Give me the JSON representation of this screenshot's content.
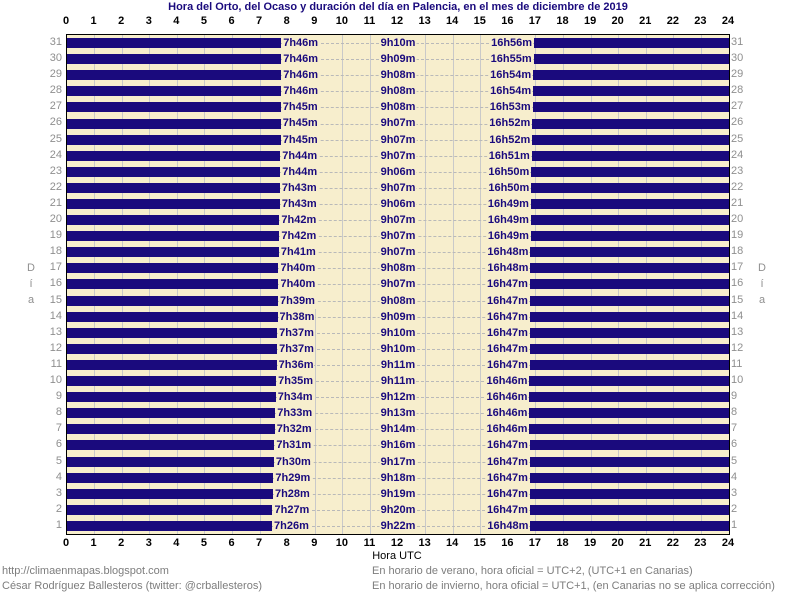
{
  "chart_data": {
    "type": "bar",
    "variant": "day-night-horizontal-bars",
    "title": "Hora del Orto, del Ocaso y duración del día en Palencia, en el mes de diciembre de 2019",
    "xlabel": "Hora UTC",
    "ylabel": "Día",
    "xlim": [
      0,
      24
    ],
    "x_ticks": [
      0,
      1,
      2,
      3,
      4,
      5,
      6,
      7,
      8,
      9,
      10,
      11,
      12,
      13,
      14,
      15,
      16,
      17,
      18,
      19,
      20,
      21,
      22,
      23,
      24
    ],
    "grid": true,
    "legend": "none",
    "colors": {
      "night_bar": "#1a0a7d",
      "day_background": "#f7eecd",
      "gridline": "#c9c9c9",
      "dashed_line": "#b9b9b9",
      "hour_text": "#000000",
      "day_number_text": "#8f8f8f",
      "bar_label_text": "#1a0a7d",
      "title_text": "#1a0a7d",
      "footer_text": "#7d7d7d"
    },
    "days": [
      {
        "day": 31,
        "sunrise": "7h46m",
        "daylight": "9h10m",
        "sunset": "16h56m"
      },
      {
        "day": 30,
        "sunrise": "7h46m",
        "daylight": "9h09m",
        "sunset": "16h55m"
      },
      {
        "day": 29,
        "sunrise": "7h46m",
        "daylight": "9h08m",
        "sunset": "16h54m"
      },
      {
        "day": 28,
        "sunrise": "7h46m",
        "daylight": "9h08m",
        "sunset": "16h54m"
      },
      {
        "day": 27,
        "sunrise": "7h45m",
        "daylight": "9h08m",
        "sunset": "16h53m"
      },
      {
        "day": 26,
        "sunrise": "7h45m",
        "daylight": "9h07m",
        "sunset": "16h52m"
      },
      {
        "day": 25,
        "sunrise": "7h45m",
        "daylight": "9h07m",
        "sunset": "16h52m"
      },
      {
        "day": 24,
        "sunrise": "7h44m",
        "daylight": "9h07m",
        "sunset": "16h51m"
      },
      {
        "day": 23,
        "sunrise": "7h44m",
        "daylight": "9h06m",
        "sunset": "16h50m"
      },
      {
        "day": 22,
        "sunrise": "7h43m",
        "daylight": "9h07m",
        "sunset": "16h50m"
      },
      {
        "day": 21,
        "sunrise": "7h43m",
        "daylight": "9h06m",
        "sunset": "16h49m"
      },
      {
        "day": 20,
        "sunrise": "7h42m",
        "daylight": "9h07m",
        "sunset": "16h49m"
      },
      {
        "day": 19,
        "sunrise": "7h42m",
        "daylight": "9h07m",
        "sunset": "16h49m"
      },
      {
        "day": 18,
        "sunrise": "7h41m",
        "daylight": "9h07m",
        "sunset": "16h48m"
      },
      {
        "day": 17,
        "sunrise": "7h40m",
        "daylight": "9h08m",
        "sunset": "16h48m"
      },
      {
        "day": 16,
        "sunrise": "7h40m",
        "daylight": "9h07m",
        "sunset": "16h47m"
      },
      {
        "day": 15,
        "sunrise": "7h39m",
        "daylight": "9h08m",
        "sunset": "16h47m"
      },
      {
        "day": 14,
        "sunrise": "7h38m",
        "daylight": "9h09m",
        "sunset": "16h47m"
      },
      {
        "day": 13,
        "sunrise": "7h37m",
        "daylight": "9h10m",
        "sunset": "16h47m"
      },
      {
        "day": 12,
        "sunrise": "7h37m",
        "daylight": "9h10m",
        "sunset": "16h47m"
      },
      {
        "day": 11,
        "sunrise": "7h36m",
        "daylight": "9h11m",
        "sunset": "16h47m"
      },
      {
        "day": 10,
        "sunrise": "7h35m",
        "daylight": "9h11m",
        "sunset": "16h46m"
      },
      {
        "day": 9,
        "sunrise": "7h34m",
        "daylight": "9h12m",
        "sunset": "16h46m"
      },
      {
        "day": 8,
        "sunrise": "7h33m",
        "daylight": "9h13m",
        "sunset": "16h46m"
      },
      {
        "day": 7,
        "sunrise": "7h32m",
        "daylight": "9h14m",
        "sunset": "16h46m"
      },
      {
        "day": 6,
        "sunrise": "7h31m",
        "daylight": "9h16m",
        "sunset": "16h47m"
      },
      {
        "day": 5,
        "sunrise": "7h30m",
        "daylight": "9h17m",
        "sunset": "16h47m"
      },
      {
        "day": 4,
        "sunrise": "7h29m",
        "daylight": "9h18m",
        "sunset": "16h47m"
      },
      {
        "day": 3,
        "sunrise": "7h28m",
        "daylight": "9h19m",
        "sunset": "16h47m"
      },
      {
        "day": 2,
        "sunrise": "7h27m",
        "daylight": "9h20m",
        "sunset": "16h47m"
      },
      {
        "day": 1,
        "sunrise": "7h26m",
        "daylight": "9h22m",
        "sunset": "16h48m"
      }
    ]
  },
  "footer": {
    "left_line1": "http://climaenmapas.blogspot.com",
    "left_line2": "César Rodríguez Ballesteros (twitter: @crballesteros)",
    "right_line1": "En horario de verano, hora oficial = UTC+2, (UTC+1 en Canarias)",
    "right_line2": "En horario de invierno, hora oficial = UTC+1, (en Canarias no se aplica corrección)"
  }
}
